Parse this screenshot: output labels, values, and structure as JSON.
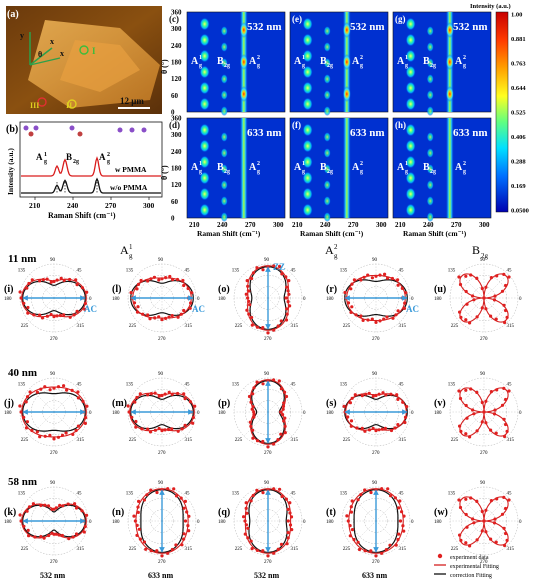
{
  "panel_a": {
    "label": "(a)",
    "scale_bar": "12 μm",
    "markers": [
      "I",
      "II",
      "III"
    ],
    "axes": [
      "y",
      "x",
      "x",
      "θ"
    ]
  },
  "panel_b": {
    "label": "(b)",
    "ylabel": "Intensity (a.u.)",
    "xlabel": "Raman Shift (cm⁻¹)",
    "xticks": [
      "210",
      "240",
      "270",
      "300"
    ],
    "peaks": [
      "A",
      "1",
      "g",
      "B",
      "2g",
      "A",
      "2",
      "g"
    ],
    "series": [
      "w PMMA",
      "w/o PMMA"
    ],
    "series_colors": [
      "#d91c1c",
      "#111111"
    ]
  },
  "maps": {
    "panels": [
      {
        "label": "(c)",
        "laser": "532 nm"
      },
      {
        "label": "(e)",
        "laser": "532 nm"
      },
      {
        "label": "(g)",
        "laser": "532 nm"
      },
      {
        "label": "(d)",
        "laser": "633 nm"
      },
      {
        "label": "(f)",
        "laser": "633 nm"
      },
      {
        "label": "(h)",
        "laser": "633 nm"
      }
    ],
    "ylabel": "θ (°)",
    "xlabel": "Raman Shift (cm⁻¹)",
    "yticks": [
      "0",
      "60",
      "120",
      "180",
      "240",
      "300",
      "360"
    ],
    "xticks": [
      "210",
      "240",
      "270",
      "300"
    ],
    "peak_labels": [
      "A",
      "1",
      "g",
      "B",
      "2g",
      "A",
      "2",
      "g"
    ]
  },
  "colorbar": {
    "title": "Intensity (a.u.)",
    "ticks": [
      "1.00",
      "0.881",
      "0.763",
      "0.644",
      "0.525",
      "0.406",
      "0.288",
      "0.169",
      "0.0500"
    ]
  },
  "polar": {
    "column_headers": [
      "A",
      "1",
      "g",
      "A",
      "2",
      "g",
      "B",
      "2g"
    ],
    "rows": [
      {
        "thickness": "11 nm",
        "labels": [
          "(i)",
          "(l)",
          "(o)",
          "(r)",
          "(u)"
        ]
      },
      {
        "thickness": "40 nm",
        "labels": [
          "(j)",
          "(m)",
          "(p)",
          "(s)",
          "(v)"
        ]
      },
      {
        "thickness": "58 nm",
        "labels": [
          "(k)",
          "(n)",
          "(q)",
          "(t)",
          "(w)"
        ]
      }
    ],
    "angle_ticks": [
      "90",
      "45",
      "0",
      "315",
      "270",
      "225",
      "180",
      "135"
    ],
    "direction_labels": [
      "AC",
      "AC",
      "ZZ",
      "AC"
    ],
    "bottom_labels": [
      "532 nm",
      "633 nm",
      "532 nm",
      "633 nm"
    ],
    "legend": [
      "experiment data",
      "experimental Fitting",
      "correction Fitting"
    ],
    "colors": {
      "data": "#e02020",
      "fit_exp": "#d42020",
      "fit_corr": "#111111",
      "arrow": "#3a9ad9"
    }
  }
}
